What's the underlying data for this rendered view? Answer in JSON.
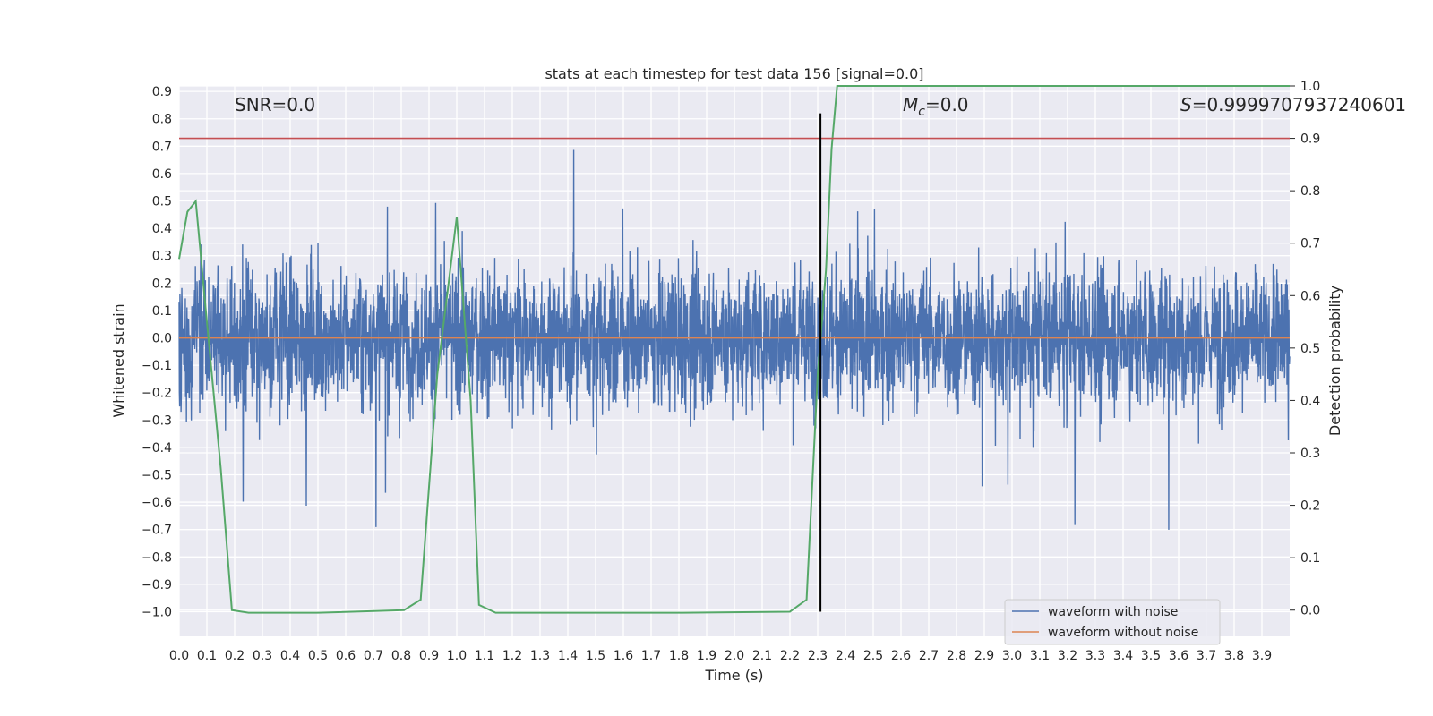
{
  "chart_data": {
    "type": "line",
    "title": "stats at each timestep for test data 156 [signal=0.0]",
    "xlabel": "Time (s)",
    "ylabel": "Whitened strain",
    "ylabel_right": "Detection probability",
    "xlim": [
      0.0,
      4.0
    ],
    "ylim": [
      -1.09,
      0.92
    ],
    "ylim_right": [
      -0.05,
      1.0
    ],
    "x_ticks": [
      0.0,
      0.1,
      0.2,
      0.3,
      0.4,
      0.5,
      0.6,
      0.7,
      0.8,
      0.9,
      1.0,
      1.1,
      1.2,
      1.3,
      1.4,
      1.5,
      1.6,
      1.7,
      1.8,
      1.9,
      2.0,
      2.1,
      2.2,
      2.3,
      2.4,
      2.5,
      2.6,
      2.7,
      2.8,
      2.9,
      3.0,
      3.1,
      3.2,
      3.3,
      3.4,
      3.5,
      3.6,
      3.7,
      3.8,
      3.9
    ],
    "x_tick_labels": [
      "0.0",
      "0.1",
      "0.2",
      "0.3",
      "0.4",
      "0.5",
      "0.6",
      "0.7",
      "0.8",
      "0.9",
      "1.0",
      "1.1",
      "1.2",
      "1.3",
      "1.4",
      "1.5",
      "1.6",
      "1.7",
      "1.8",
      "1.9",
      "2.0",
      "2.1",
      "2.2",
      "2.3",
      "2.4",
      "2.5",
      "2.6",
      "2.7",
      "2.8",
      "2.9",
      "3.0",
      "3.1",
      "3.2",
      "3.3",
      "3.4",
      "3.5",
      "3.6",
      "3.7",
      "3.8",
      "3.9"
    ],
    "y_ticks": [
      0.9,
      0.8,
      0.7,
      0.6,
      0.5,
      0.4,
      0.3,
      0.2,
      0.1,
      0.0,
      -0.1,
      -0.2,
      -0.3,
      -0.4,
      -0.5,
      -0.6,
      -0.7,
      -0.8,
      -0.9,
      -1.0
    ],
    "y_tick_labels": [
      "0.9",
      "0.8",
      "0.7",
      "0.6",
      "0.5",
      "0.4",
      "0.3",
      "0.2",
      "0.1",
      "0.0",
      "−0.1",
      "−0.2",
      "−0.3",
      "−0.4",
      "−0.5",
      "−0.6",
      "−0.7",
      "−0.8",
      "−0.9",
      "−1.0"
    ],
    "y_right_ticks": [
      1.0,
      0.9,
      0.8,
      0.7,
      0.6,
      0.5,
      0.4,
      0.3,
      0.2,
      0.1,
      0.0
    ],
    "y_right_tick_labels": [
      "1.0",
      "0.9",
      "0.8",
      "0.7",
      "0.6",
      "0.5",
      "0.4",
      "0.3",
      "0.2",
      "0.1",
      "0.0"
    ],
    "series": [
      {
        "name": "waveform with noise",
        "axis": "left",
        "color": "#4c72b0",
        "kind": "noise",
        "samples": 4096,
        "typical_range": [
          -0.45,
          0.45
        ],
        "peak_range": [
          -0.99,
          0.81
        ]
      },
      {
        "name": "waveform without noise",
        "axis": "left",
        "color": "#dd8452",
        "x": [
          0.0,
          4.0
        ],
        "y": [
          0.0,
          0.0
        ]
      },
      {
        "name": "detection probability",
        "axis": "right",
        "color": "#55a868",
        "x": [
          0.0,
          0.03,
          0.06,
          0.1,
          0.15,
          0.19,
          0.25,
          0.5,
          0.81,
          0.87,
          0.93,
          1.0,
          1.05,
          1.08,
          1.14,
          1.4,
          1.8,
          2.2,
          2.26,
          2.3,
          2.33,
          2.35,
          2.37,
          2.5,
          3.0,
          3.5,
          4.0
        ],
        "y": [
          0.67,
          0.76,
          0.78,
          0.55,
          0.27,
          0.0,
          -0.005,
          -0.005,
          0.0,
          0.02,
          0.45,
          0.75,
          0.4,
          0.01,
          -0.005,
          -0.005,
          -0.005,
          -0.003,
          0.02,
          0.45,
          0.65,
          0.88,
          1.0,
          1.0,
          1.0,
          1.0,
          1.0
        ]
      }
    ],
    "threshold_line": {
      "axis": "right",
      "value": 0.9,
      "color": "#c44e52"
    },
    "marker_line": {
      "x": 2.31,
      "y_range": [
        -1.0,
        0.82
      ],
      "color": "#000000"
    },
    "annotations": {
      "snr": "SNR=0.0",
      "mc_symbol": "M",
      "mc_sub": "c",
      "mc_value": "=0.0",
      "s_symbol": "S",
      "s_value": "=0.9999707937240601"
    },
    "legend": {
      "position": "lower-right",
      "entries": [
        {
          "label": "waveform with noise",
          "color": "#4c72b0"
        },
        {
          "label": "waveform without noise",
          "color": "#dd8452"
        }
      ]
    },
    "background": "#eaeaf2",
    "grid": true
  }
}
